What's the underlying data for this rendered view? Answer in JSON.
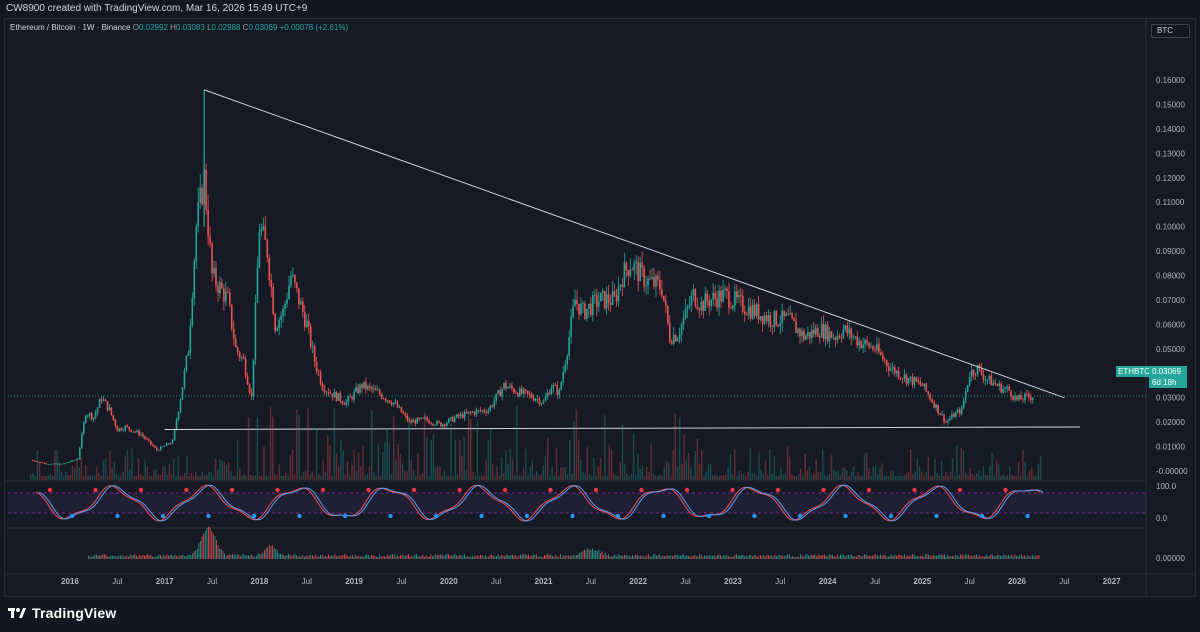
{
  "header": {
    "attribution": "CW8900 created with TradingView.com, Mar 16, 2026 15:49 UTC+9"
  },
  "legend": {
    "symbol": "Ethereum / Bitcoin · 1W · Binance",
    "o_key": "O",
    "o_val": "0.02992",
    "h_key": "H",
    "h_val": "0.03083",
    "l_key": "L",
    "l_val": "0.02988",
    "c_key": "C",
    "c_val": "0.03069",
    "change": "+0.00078 (+2.61%)"
  },
  "currency_button": "BTC",
  "last_price": {
    "ticker": "ETHBTC",
    "value": "0.03069",
    "countdown": "6d 18h"
  },
  "brand": "TradingView",
  "colors": {
    "up": "#26a69a",
    "down": "#ef5350",
    "background": "#131722",
    "trendline": "#d1d4dc"
  },
  "chart_data": [
    {
      "type": "candlestick",
      "title": "Ethereum / Bitcoin · 1W · Binance",
      "ylim": [
        -0.01,
        0.165
      ],
      "yticks": [
        "0.16000",
        "0.15000",
        "0.14000",
        "0.13000",
        "0.12000",
        "0.11000",
        "0.10000",
        "0.09000",
        "0.08000",
        "0.07000",
        "0.06000",
        "0.05000",
        "0.04000",
        "0.03000",
        "0.02000",
        "0.01000",
        "-0.00000"
      ],
      "xticks": [
        "2016",
        "Jul",
        "2017",
        "Jul",
        "2018",
        "Jul",
        "2019",
        "Jul",
        "2020",
        "Jul",
        "2021",
        "Jul",
        "2022",
        "Jul",
        "2023",
        "Jul",
        "2024",
        "Jul",
        "2025",
        "Jul",
        "2026",
        "Jul",
        "2027"
      ],
      "x": [
        "2015-08",
        "2015-10",
        "2015-12",
        "2016-02",
        "2016-03",
        "2016-04",
        "2016-05",
        "2016-06",
        "2016-07",
        "2016-08",
        "2016-10",
        "2016-12",
        "2017-02",
        "2017-03",
        "2017-04",
        "2017-05",
        "2017-06",
        "2017-07",
        "2017-08",
        "2017-09",
        "2017-10",
        "2017-11",
        "2017-12",
        "2018-01",
        "2018-02",
        "2018-03",
        "2018-04",
        "2018-05",
        "2018-06",
        "2018-07",
        "2018-08",
        "2018-09",
        "2018-10",
        "2018-12",
        "2019-02",
        "2019-04",
        "2019-06",
        "2019-08",
        "2019-10",
        "2019-12",
        "2020-02",
        "2020-04",
        "2020-06",
        "2020-08",
        "2020-10",
        "2020-12",
        "2021-01",
        "2021-02",
        "2021-03",
        "2021-04",
        "2021-05",
        "2021-06",
        "2021-08",
        "2021-10",
        "2021-11",
        "2021-12",
        "2022-02",
        "2022-04",
        "2022-05",
        "2022-06",
        "2022-08",
        "2022-09",
        "2022-10",
        "2022-12",
        "2023-02",
        "2023-04",
        "2023-06",
        "2023-08",
        "2023-10",
        "2023-12",
        "2024-02",
        "2024-03",
        "2024-05",
        "2024-07",
        "2024-09",
        "2024-11",
        "2025-01",
        "2025-03",
        "2025-04",
        "2025-05",
        "2025-06",
        "2025-07",
        "2025-08",
        "2025-09",
        "2025-10",
        "2025-11",
        "2025-12",
        "2026-01",
        "2026-02",
        "2026-03"
      ],
      "close": [
        0.0045,
        0.003,
        0.0028,
        0.005,
        0.024,
        0.022,
        0.03,
        0.025,
        0.017,
        0.018,
        0.015,
        0.0085,
        0.012,
        0.03,
        0.05,
        0.1,
        0.12,
        0.08,
        0.075,
        0.07,
        0.05,
        0.045,
        0.03,
        0.1,
        0.09,
        0.06,
        0.065,
        0.08,
        0.07,
        0.06,
        0.045,
        0.035,
        0.032,
        0.028,
        0.035,
        0.032,
        0.028,
        0.02,
        0.021,
        0.019,
        0.022,
        0.024,
        0.025,
        0.035,
        0.032,
        0.03,
        0.028,
        0.035,
        0.032,
        0.05,
        0.07,
        0.065,
        0.07,
        0.07,
        0.08,
        0.085,
        0.078,
        0.075,
        0.055,
        0.056,
        0.072,
        0.068,
        0.07,
        0.072,
        0.068,
        0.065,
        0.062,
        0.062,
        0.055,
        0.058,
        0.055,
        0.058,
        0.053,
        0.05,
        0.042,
        0.038,
        0.035,
        0.025,
        0.02,
        0.023,
        0.025,
        0.04,
        0.042,
        0.038,
        0.036,
        0.034,
        0.033,
        0.029,
        0.03,
        0.0307
      ],
      "high_wick": {
        "x": "2017-06",
        "value": 0.156
      },
      "trendlines": [
        {
          "from": {
            "x": "2017-06",
            "y": 0.156
          },
          "to": {
            "x": "2026-07",
            "y": 0.03
          }
        },
        {
          "from": {
            "x": "2017-01",
            "y": 0.017
          },
          "to": {
            "x": "2026-09",
            "y": 0.018
          }
        }
      ]
    },
    {
      "type": "line",
      "title": "",
      "yticks": [
        "100.0",
        "0.0"
      ],
      "ylim": [
        0,
        100
      ],
      "levels": [
        80,
        20
      ]
    },
    {
      "type": "bar",
      "title": "",
      "yticks": [
        "0.00000"
      ]
    }
  ]
}
